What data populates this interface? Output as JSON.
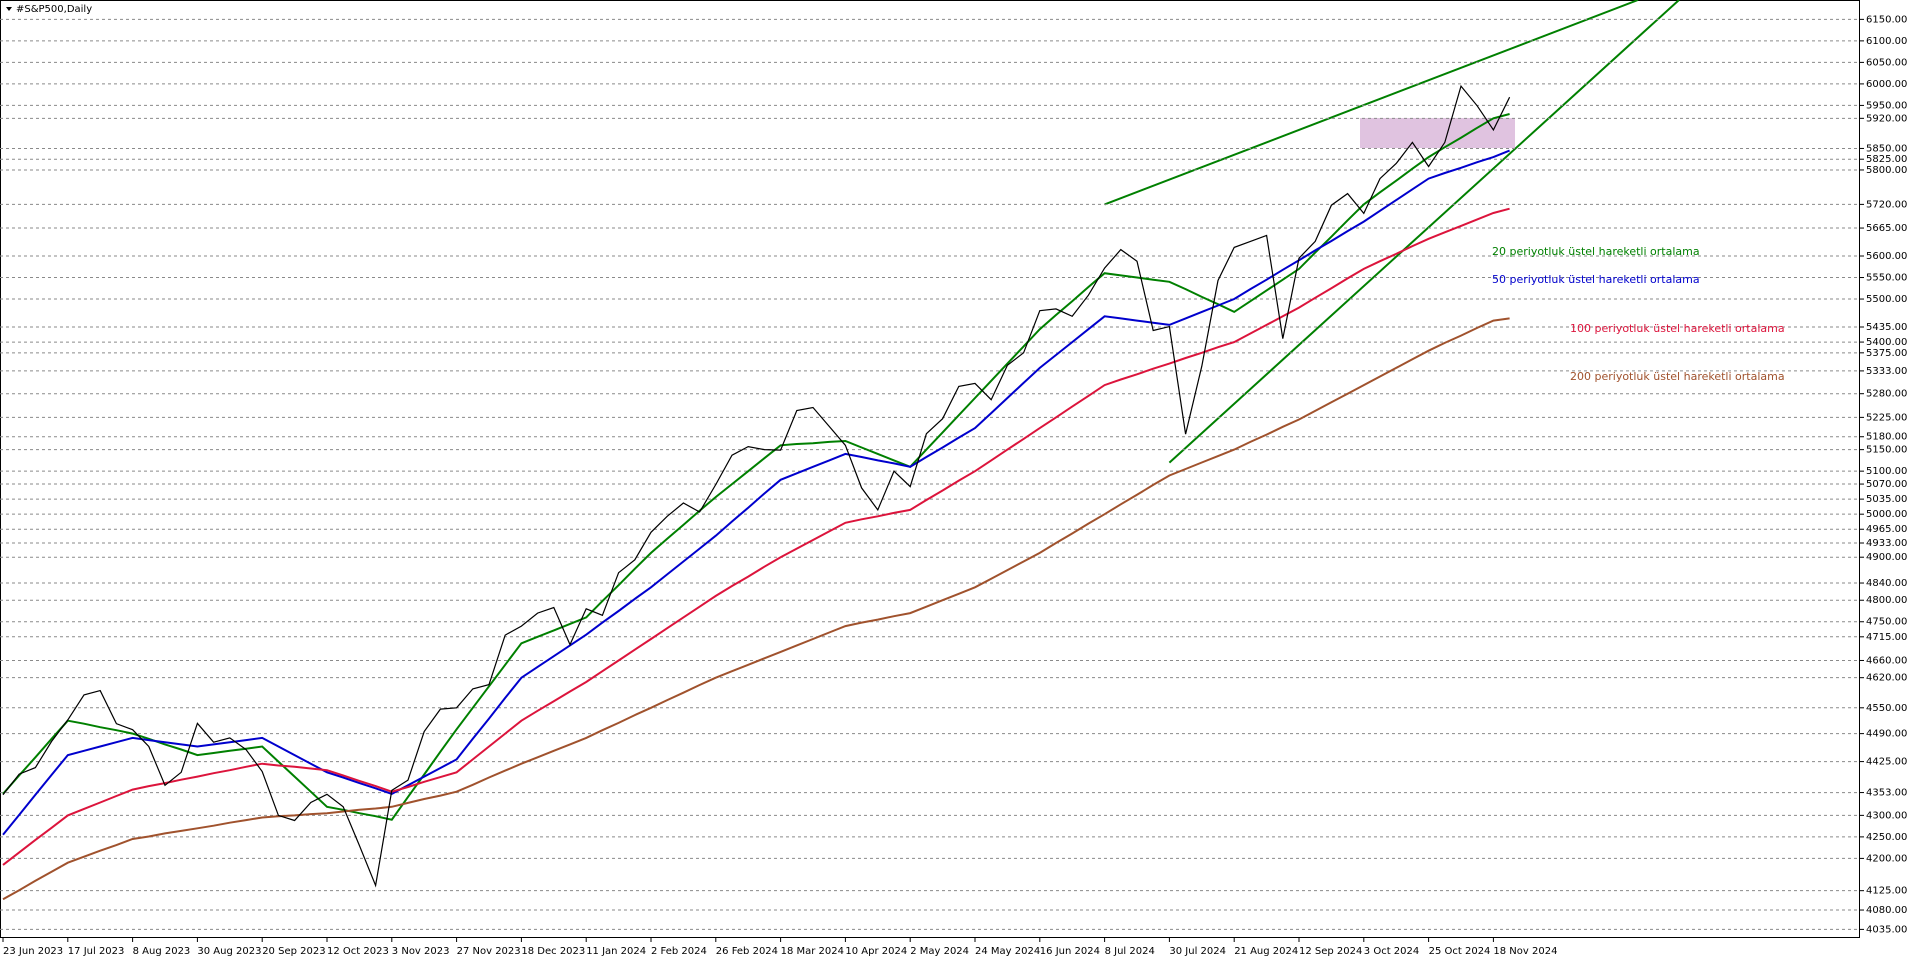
{
  "chart_data": {
    "type": "line",
    "title": "#S&P500,Daily",
    "grid": true,
    "ylim": [
      4015,
      6195
    ],
    "yticks": [
      {
        "value": 6150,
        "label": "6150.00"
      },
      {
        "value": 6100,
        "label": "6100.00"
      },
      {
        "value": 6050,
        "label": "6050.00"
      },
      {
        "value": 6000,
        "label": "6000.00"
      },
      {
        "value": 5950,
        "label": "5950.00"
      },
      {
        "value": 5920,
        "label": "5920.00"
      },
      {
        "value": 5850,
        "label": "5850.00"
      },
      {
        "value": 5825,
        "label": "5825.00"
      },
      {
        "value": 5800,
        "label": "5800.00"
      },
      {
        "value": 5720,
        "label": "5720.00"
      },
      {
        "value": 5665,
        "label": "5665.00"
      },
      {
        "value": 5600,
        "label": "5600.00"
      },
      {
        "value": 5550,
        "label": "5550.00"
      },
      {
        "value": 5500,
        "label": "5500.00"
      },
      {
        "value": 5435,
        "label": "5435.00"
      },
      {
        "value": 5400,
        "label": "5400.00"
      },
      {
        "value": 5375,
        "label": "5375.00"
      },
      {
        "value": 5333,
        "label": "5333.00"
      },
      {
        "value": 5280,
        "label": "5280.00"
      },
      {
        "value": 5225,
        "label": "5225.00"
      },
      {
        "value": 5180,
        "label": "5180.00"
      },
      {
        "value": 5150,
        "label": "5150.00"
      },
      {
        "value": 5100,
        "label": "5100.00"
      },
      {
        "value": 5070,
        "label": "5070.00"
      },
      {
        "value": 5035,
        "label": "5035.00"
      },
      {
        "value": 5000,
        "label": "5000.00"
      },
      {
        "value": 4965,
        "label": "4965.00"
      },
      {
        "value": 4933,
        "label": "4933.00"
      },
      {
        "value": 4900,
        "label": "4900.00"
      },
      {
        "value": 4840,
        "label": "4840.00"
      },
      {
        "value": 4800,
        "label": "4800.00"
      },
      {
        "value": 4750,
        "label": "4750.00"
      },
      {
        "value": 4715,
        "label": "4715.00"
      },
      {
        "value": 4660,
        "label": "4660.00"
      },
      {
        "value": 4620,
        "label": "4620.00"
      },
      {
        "value": 4550,
        "label": "4550.00"
      },
      {
        "value": 4490,
        "label": "4490.00"
      },
      {
        "value": 4425,
        "label": "4425.00"
      },
      {
        "value": 4353,
        "label": "4353.00"
      },
      {
        "value": 4300,
        "label": "4300.00"
      },
      {
        "value": 4250,
        "label": "4250.00"
      },
      {
        "value": 4200,
        "label": "4200.00"
      },
      {
        "value": 4125,
        "label": "4125.00"
      },
      {
        "value": 4080,
        "label": "4080.00"
      },
      {
        "value": 4035,
        "label": "4035.00"
      }
    ],
    "categories": [
      "23 Jun 2023",
      null,
      null,
      null,
      "17 Jul 2023",
      null,
      null,
      null,
      "8 Aug 2023",
      null,
      null,
      null,
      "30 Aug 2023",
      null,
      null,
      null,
      "20 Sep 2023",
      null,
      null,
      null,
      "12 Oct 2023",
      null,
      null,
      null,
      "3 Nov 2023",
      null,
      null,
      null,
      "27 Nov 2023",
      null,
      null,
      null,
      "18 Dec 2023",
      null,
      null,
      null,
      "11 Jan 2024",
      null,
      null,
      null,
      "2 Feb 2024",
      null,
      null,
      null,
      "26 Feb 2024",
      null,
      null,
      null,
      "18 Mar 2024",
      null,
      null,
      null,
      "10 Apr 2024",
      null,
      null,
      null,
      "2 May 2024",
      null,
      null,
      null,
      "24 May 2024",
      null,
      null,
      null,
      "16 Jun 2024",
      null,
      null,
      null,
      "8 Jul 2024",
      null,
      null,
      null,
      "30 Jul 2024",
      null,
      null,
      null,
      "21 Aug 2024",
      null,
      null,
      null,
      "12 Sep 2024",
      null,
      null,
      null,
      "3 Oct 2024",
      null,
      null,
      null,
      "25 Oct 2024",
      null,
      null,
      null,
      "18 Nov 2024",
      null
    ],
    "price": {
      "color": "#000000",
      "values": [
        4348,
        4396,
        4411,
        4472,
        4522,
        4580,
        4590,
        4513,
        4499,
        4460,
        4370,
        4400,
        4514,
        4470,
        4480,
        4453,
        4402,
        4300,
        4288,
        4330,
        4349,
        4320,
        4230,
        4137,
        4358,
        4382,
        4495,
        4547,
        4550,
        4594,
        4604,
        4719,
        4740,
        4770,
        4783,
        4697,
        4780,
        4765,
        4864,
        4894,
        4958,
        4995,
        5026,
        5005,
        5069,
        5137,
        5157,
        5150,
        5149,
        5241,
        5248,
        5204,
        5160,
        5061,
        5010,
        5100,
        5064,
        5187,
        5222,
        5297,
        5304,
        5266,
        5346,
        5375,
        5473,
        5477,
        5460,
        5509,
        5572,
        5615,
        5588,
        5427,
        5436,
        5186,
        5344,
        5543,
        5620,
        5634,
        5648,
        5408,
        5595,
        5634,
        5718,
        5745,
        5699,
        5780,
        5815,
        5864,
        5808,
        5864,
        5995,
        5949,
        5893,
        5969
      ]
    },
    "series": [
      {
        "name": "20 periyotluk üstel hareketli ortalama",
        "color": "#008000",
        "values": [
          4350,
          4393,
          4435,
          4478,
          4520,
          4513,
          4505,
          4498,
          4490,
          4478,
          4465,
          4453,
          4440,
          4445,
          4450,
          4455,
          4460,
          4425,
          4390,
          4355,
          4320,
          4313,
          4305,
          4298,
          4290,
          4343,
          4395,
          4448,
          4500,
          4550,
          4600,
          4650,
          4700,
          4715,
          4730,
          4745,
          4760,
          4798,
          4835,
          4873,
          4910,
          4943,
          4975,
          5008,
          5040,
          5070,
          5100,
          5130,
          5160,
          5163,
          5165,
          5168,
          5170,
          5155,
          5140,
          5125,
          5110,
          5150,
          5190,
          5230,
          5270,
          5310,
          5350,
          5390,
          5430,
          5463,
          5495,
          5528,
          5560,
          5555,
          5550,
          5545,
          5540,
          5523,
          5505,
          5488,
          5470,
          5495,
          5520,
          5545,
          5570,
          5608,
          5645,
          5683,
          5720,
          5748,
          5775,
          5803,
          5830,
          5853,
          5875,
          5898,
          5920,
          5930
        ]
      },
      {
        "name": "50 periyotluk üstel hareketli ortalama",
        "color": "#0000cd",
        "values": [
          4255,
          4301,
          4348,
          4394,
          4440,
          4450,
          4460,
          4470,
          4480,
          4475,
          4470,
          4465,
          4460,
          4465,
          4470,
          4475,
          4480,
          4460,
          4440,
          4420,
          4400,
          4388,
          4375,
          4363,
          4350,
          4370,
          4390,
          4410,
          4430,
          4478,
          4525,
          4573,
          4620,
          4645,
          4670,
          4695,
          4720,
          4748,
          4775,
          4803,
          4830,
          4860,
          4890,
          4920,
          4950,
          4983,
          5015,
          5048,
          5080,
          5095,
          5110,
          5125,
          5140,
          5133,
          5125,
          5118,
          5110,
          5133,
          5155,
          5178,
          5200,
          5235,
          5270,
          5305,
          5340,
          5370,
          5400,
          5430,
          5460,
          5455,
          5450,
          5445,
          5440,
          5455,
          5470,
          5485,
          5500,
          5523,
          5545,
          5568,
          5590,
          5613,
          5635,
          5658,
          5680,
          5705,
          5730,
          5755,
          5780,
          5793,
          5805,
          5818,
          5830,
          5845
        ]
      },
      {
        "name": "100 periyotluk üstel hareketli ortalama",
        "color": "#dc143c",
        "values": [
          4185,
          4214,
          4243,
          4271,
          4300,
          4315,
          4330,
          4345,
          4360,
          4368,
          4375,
          4383,
          4390,
          4398,
          4405,
          4413,
          4420,
          4416,
          4413,
          4409,
          4405,
          4393,
          4380,
          4368,
          4355,
          4366,
          4378,
          4389,
          4400,
          4430,
          4460,
          4490,
          4520,
          4543,
          4565,
          4588,
          4610,
          4635,
          4660,
          4685,
          4710,
          4735,
          4760,
          4785,
          4810,
          4833,
          4855,
          4878,
          4900,
          4920,
          4940,
          4960,
          4980,
          4988,
          4995,
          5003,
          5010,
          5033,
          5055,
          5078,
          5100,
          5125,
          5150,
          5175,
          5200,
          5225,
          5250,
          5275,
          5300,
          5313,
          5325,
          5338,
          5350,
          5363,
          5375,
          5388,
          5400,
          5420,
          5440,
          5460,
          5480,
          5503,
          5525,
          5548,
          5570,
          5588,
          5605,
          5623,
          5640,
          5655,
          5670,
          5685,
          5700,
          5710
        ]
      },
      {
        "name": "200 periyotluk üstel hareketli ortalama",
        "color": "#a0522d",
        "values": [
          4105,
          4126,
          4148,
          4169,
          4190,
          4204,
          4218,
          4231,
          4245,
          4251,
          4258,
          4264,
          4270,
          4276,
          4283,
          4289,
          4295,
          4298,
          4300,
          4303,
          4305,
          4309,
          4313,
          4316,
          4320,
          4329,
          4338,
          4346,
          4355,
          4371,
          4388,
          4404,
          4420,
          4435,
          4450,
          4465,
          4480,
          4498,
          4515,
          4533,
          4550,
          4568,
          4585,
          4603,
          4620,
          4635,
          4650,
          4665,
          4680,
          4695,
          4710,
          4725,
          4740,
          4748,
          4755,
          4763,
          4770,
          4785,
          4800,
          4815,
          4830,
          4850,
          4870,
          4890,
          4910,
          4933,
          4955,
          4978,
          5000,
          5023,
          5045,
          5068,
          5090,
          5105,
          5120,
          5135,
          5150,
          5168,
          5185,
          5203,
          5220,
          5240,
          5260,
          5280,
          5300,
          5320,
          5340,
          5360,
          5380,
          5398,
          5415,
          5433,
          5450,
          5455
        ]
      }
    ]
  }
}
